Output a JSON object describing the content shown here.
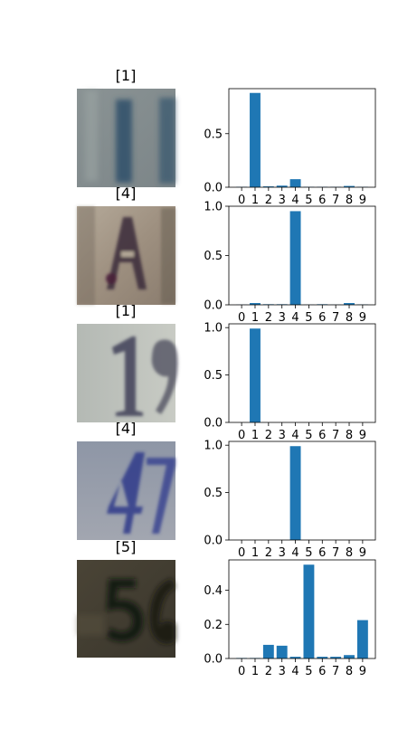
{
  "chart_data": [
    {
      "type": "bar",
      "image_title": "[1]",
      "image_description": "house number crop showing digit 1",
      "categories": [
        "0",
        "1",
        "2",
        "3",
        "4",
        "5",
        "6",
        "7",
        "8",
        "9"
      ],
      "values": [
        0.004,
        0.88,
        0.008,
        0.015,
        0.075,
        0.004,
        0.004,
        0.004,
        0.012,
        0.004
      ],
      "ylim": [
        0,
        0.92
      ],
      "yticks": [
        "0.0",
        "0.5"
      ],
      "ytick_values": [
        0,
        0.5
      ]
    },
    {
      "type": "bar",
      "image_title": "[4]",
      "image_description": "house number crop showing letter-like digit 4",
      "categories": [
        "0",
        "1",
        "2",
        "3",
        "4",
        "5",
        "6",
        "7",
        "8",
        "9"
      ],
      "values": [
        0.002,
        0.018,
        0.006,
        0.006,
        0.95,
        0.002,
        0.006,
        0.002,
        0.018,
        0.004
      ],
      "ylim": [
        0,
        1.0
      ],
      "yticks": [
        "0.0",
        "0.5",
        "1.0"
      ],
      "ytick_values": [
        0,
        0.5,
        1.0
      ]
    },
    {
      "type": "bar",
      "image_title": "[1]",
      "image_description": "house number crop showing digits 1 and partial 9",
      "categories": [
        "0",
        "1",
        "2",
        "3",
        "4",
        "5",
        "6",
        "7",
        "8",
        "9"
      ],
      "values": [
        0,
        0.99,
        0,
        0,
        0,
        0,
        0,
        0,
        0,
        0
      ],
      "ylim": [
        0,
        1.04
      ],
      "yticks": [
        "0.0",
        "0.5",
        "1.0"
      ],
      "ytick_values": [
        0,
        0.5,
        1.0
      ]
    },
    {
      "type": "bar",
      "image_title": "[4]",
      "image_description": "house number crop showing blue digits 4 and 7",
      "categories": [
        "0",
        "1",
        "2",
        "3",
        "4",
        "5",
        "6",
        "7",
        "8",
        "9"
      ],
      "values": [
        0,
        0,
        0,
        0,
        0.99,
        0,
        0,
        0,
        0,
        0
      ],
      "ylim": [
        0,
        1.04
      ],
      "yticks": [
        "0.0",
        "0.5",
        "1.0"
      ],
      "ytick_values": [
        0,
        0.5,
        1.0
      ]
    },
    {
      "type": "bar",
      "image_title": "[5]",
      "image_description": "dark house number crop showing digits 5 and partial 6",
      "categories": [
        "0",
        "1",
        "2",
        "3",
        "4",
        "5",
        "6",
        "7",
        "8",
        "9"
      ],
      "values": [
        0.003,
        0.003,
        0.08,
        0.075,
        0.01,
        0.55,
        0.01,
        0.01,
        0.02,
        0.225
      ],
      "ylim": [
        0,
        0.578
      ],
      "yticks": [
        "0.0",
        "0.2",
        "0.4"
      ],
      "ytick_values": [
        0,
        0.2,
        0.4
      ]
    }
  ],
  "colors": {
    "bar": "#1f77b4",
    "axis": "#000000",
    "background": "#ffffff"
  }
}
